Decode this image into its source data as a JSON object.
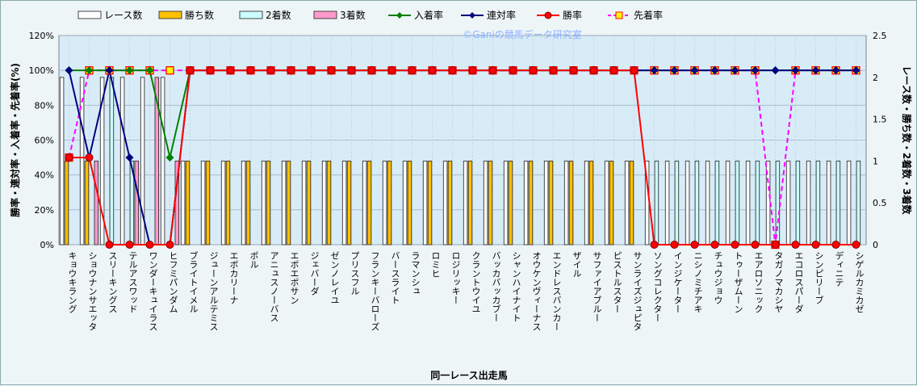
{
  "chart_data": {
    "type": "bar",
    "watermark": "©Ganiの競馬データ研究室",
    "xlabel": "同一レース出走馬",
    "ylabel": "勝率・連対率・入着率・先着率(%)",
    "y2label": "レース数・勝ち数・2着数・3着数",
    "ylim": [
      0,
      120
    ],
    "y2lim": [
      0,
      2.5
    ],
    "yticks": [
      "0%",
      "20%",
      "40%",
      "60%",
      "80%",
      "100%",
      "120%"
    ],
    "y2ticks": [
      "0",
      "0.5",
      "1",
      "1.5",
      "2",
      "2.5"
    ],
    "legend_position": "top",
    "grid": true,
    "colors": {
      "plot_bg": "#d8ecf8",
      "races": "#ffffff",
      "wins": "#ffc000",
      "second": "#ccffff",
      "third": "#ff99cc",
      "place_rate": "#008000",
      "quinella_rate": "#000080",
      "win_rate": "#ff0000",
      "ahead_rate": "#ff00ff",
      "ahead_marker": "#ffff00"
    },
    "categories": [
      "キョウキラング",
      "ショウナンサエッタ",
      "スリーキングス",
      "テルアスワッド",
      "ワンダーキュイラス",
      "ヒフミパンダム",
      "ブライトイメル",
      "ジューンアルテミス",
      "エポカリーナ",
      "ポル",
      "アニュスノーバス",
      "エポエポサン",
      "ジェバーダ",
      "ゼンノレイユ",
      "プリスフル",
      "フランキーバローズ",
      "バースライト",
      "ラマンシュ",
      "ロミヒ",
      "ロジリッキー",
      "クラントウイユ",
      "バッカバッカブー",
      "シャンハイナイト",
      "オウケンヴィーナス",
      "エンドレスバンカー",
      "ザイル",
      "サファイアブルー",
      "ピストルスター",
      "サンライズジュピタ",
      "ソングコレクター",
      "インジケーター",
      "ニシノミチアキ",
      "チュウジョウ",
      "トゥーザムーン",
      "エアロソニック",
      "タガノマカシヤ",
      "エコロスパーダ",
      "シンピリーブ",
      "ディニテ",
      "シゲルカミカゼ"
    ],
    "series": [
      {
        "name": "レース数",
        "axis": "right",
        "values": [
          2,
          2,
          2,
          2,
          2,
          2,
          1,
          1,
          1,
          1,
          1,
          1,
          1,
          1,
          1,
          1,
          1,
          1,
          1,
          1,
          1,
          1,
          1,
          1,
          1,
          1,
          1,
          1,
          1,
          1,
          1,
          1,
          1,
          1,
          1,
          1,
          1,
          1,
          1,
          1
        ]
      },
      {
        "name": "勝ち数",
        "axis": "right",
        "values": [
          1,
          1,
          0,
          0,
          0,
          0,
          1,
          1,
          1,
          1,
          1,
          1,
          1,
          1,
          1,
          1,
          1,
          1,
          1,
          1,
          1,
          1,
          1,
          1,
          1,
          1,
          1,
          1,
          1,
          0,
          0,
          0,
          0,
          0,
          0,
          0,
          0,
          0,
          0,
          0
        ]
      },
      {
        "name": "2着数",
        "axis": "right",
        "values": [
          0,
          0,
          2,
          1,
          0,
          0,
          0,
          0,
          0,
          0,
          0,
          0,
          0,
          0,
          0,
          0,
          0,
          0,
          0,
          0,
          0,
          0,
          0,
          0,
          0,
          0,
          0,
          0,
          0,
          1,
          1,
          1,
          1,
          1,
          1,
          1,
          1,
          1,
          1,
          1
        ]
      },
      {
        "name": "3着数",
        "axis": "right",
        "values": [
          0,
          1,
          0,
          1,
          2,
          1,
          0,
          0,
          0,
          0,
          0,
          0,
          0,
          0,
          0,
          0,
          0,
          0,
          0,
          0,
          0,
          0,
          0,
          0,
          0,
          0,
          0,
          0,
          0,
          0,
          0,
          0,
          0,
          0,
          0,
          0,
          0,
          0,
          0,
          0
        ]
      },
      {
        "name": "入着率",
        "axis": "left",
        "values": [
          100,
          100,
          100,
          100,
          100,
          50,
          100,
          100,
          100,
          100,
          100,
          100,
          100,
          100,
          100,
          100,
          100,
          100,
          100,
          100,
          100,
          100,
          100,
          100,
          100,
          100,
          100,
          100,
          100,
          100,
          100,
          100,
          100,
          100,
          100,
          100,
          100,
          100,
          100,
          100
        ]
      },
      {
        "name": "連対率",
        "axis": "left",
        "values": [
          100,
          50,
          100,
          50,
          0,
          0,
          100,
          100,
          100,
          100,
          100,
          100,
          100,
          100,
          100,
          100,
          100,
          100,
          100,
          100,
          100,
          100,
          100,
          100,
          100,
          100,
          100,
          100,
          100,
          100,
          100,
          100,
          100,
          100,
          100,
          100,
          100,
          100,
          100,
          100
        ]
      },
      {
        "name": "勝率",
        "axis": "left",
        "values": [
          50,
          50,
          0,
          0,
          0,
          0,
          100,
          100,
          100,
          100,
          100,
          100,
          100,
          100,
          100,
          100,
          100,
          100,
          100,
          100,
          100,
          100,
          100,
          100,
          100,
          100,
          100,
          100,
          100,
          0,
          0,
          0,
          0,
          0,
          0,
          0,
          0,
          0,
          0,
          0
        ]
      },
      {
        "name": "先着率",
        "axis": "left",
        "values": [
          50,
          100,
          100,
          100,
          100,
          100,
          100,
          100,
          100,
          100,
          100,
          100,
          100,
          100,
          100,
          100,
          100,
          100,
          100,
          100,
          100,
          100,
          100,
          100,
          100,
          100,
          100,
          100,
          100,
          100,
          100,
          100,
          100,
          100,
          100,
          0,
          100,
          100,
          100,
          100
        ]
      }
    ]
  }
}
